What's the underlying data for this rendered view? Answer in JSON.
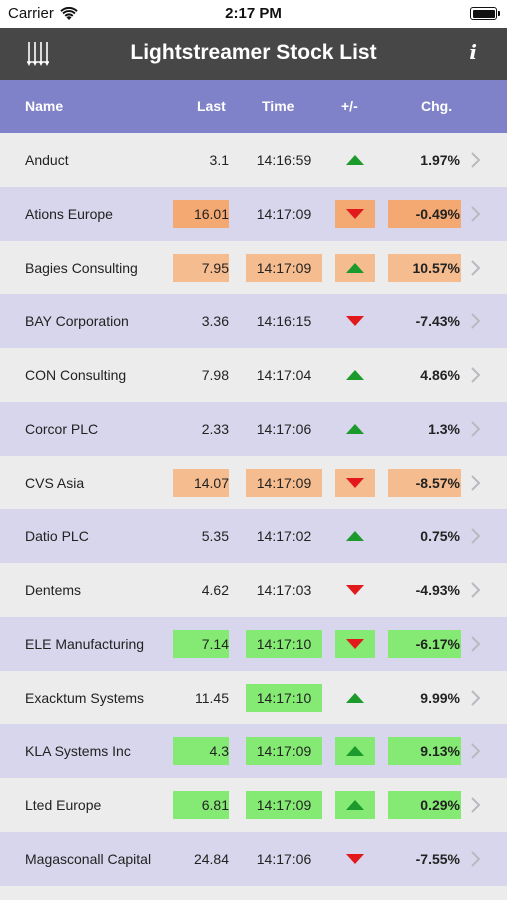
{
  "status_bar": {
    "carrier": "Carrier",
    "time": "2:17 PM"
  },
  "nav": {
    "title": "Lightstreamer Stock List",
    "left_icon": "columns-icon",
    "right_icon": "info-icon",
    "right_label": "i"
  },
  "header": {
    "name": "Name",
    "last": "Last",
    "time": "Time",
    "change": "+/-",
    "chg": "Chg."
  },
  "colors": {
    "nav_bg": "#474747",
    "header_bg": "#7f82c8",
    "row_odd": "#ececec",
    "row_even": "#d7d6ec",
    "up": "#1c9a2b",
    "down": "#e2191b",
    "hl_orange": "#f5bc8f",
    "hl_green": "#84ea73"
  },
  "rows": [
    {
      "name": "Anduct",
      "last": "3.1",
      "time": "14:16:59",
      "dir": "up",
      "chg": "1.97%",
      "hl": ""
    },
    {
      "name": "Ations Europe",
      "last": "16.01",
      "time": "14:17:09",
      "dir": "down",
      "chg": "-0.49%",
      "hl": "orange-strong",
      "hl_time": false
    },
    {
      "name": "Bagies Consulting",
      "last": "7.95",
      "time": "14:17:09",
      "dir": "up",
      "chg": "10.57%",
      "hl": "orange",
      "hl_time": true
    },
    {
      "name": "BAY Corporation",
      "last": "3.36",
      "time": "14:16:15",
      "dir": "down",
      "chg": "-7.43%",
      "hl": ""
    },
    {
      "name": "CON Consulting",
      "last": "7.98",
      "time": "14:17:04",
      "dir": "up",
      "chg": "4.86%",
      "hl": ""
    },
    {
      "name": "Corcor PLC",
      "last": "2.33",
      "time": "14:17:06",
      "dir": "up",
      "chg": "1.3%",
      "hl": ""
    },
    {
      "name": "CVS Asia",
      "last": "14.07",
      "time": "14:17:09",
      "dir": "down",
      "chg": "-8.57%",
      "hl": "orange",
      "hl_time": true
    },
    {
      "name": "Datio PLC",
      "last": "5.35",
      "time": "14:17:02",
      "dir": "up",
      "chg": "0.75%",
      "hl": ""
    },
    {
      "name": "Dentems",
      "last": "4.62",
      "time": "14:17:03",
      "dir": "down",
      "chg": "-4.93%",
      "hl": ""
    },
    {
      "name": "ELE Manufacturing",
      "last": "7.14",
      "time": "14:17:10",
      "dir": "down",
      "chg": "-6.17%",
      "hl": "green",
      "hl_time": true
    },
    {
      "name": "Exacktum Systems",
      "last": "11.45",
      "time": "14:17:10",
      "dir": "up",
      "chg": "9.99%",
      "hl": "time-only"
    },
    {
      "name": "KLA Systems Inc",
      "last": "4.3",
      "time": "14:17:09",
      "dir": "up",
      "chg": "9.13%",
      "hl": "green",
      "hl_time": true
    },
    {
      "name": "Lted Europe",
      "last": "6.81",
      "time": "14:17:09",
      "dir": "up",
      "chg": "0.29%",
      "hl": "green",
      "hl_time": true
    },
    {
      "name": "Magasconall Capital",
      "last": "24.84",
      "time": "14:17:06",
      "dir": "down",
      "chg": "-7.55%",
      "hl": ""
    }
  ]
}
